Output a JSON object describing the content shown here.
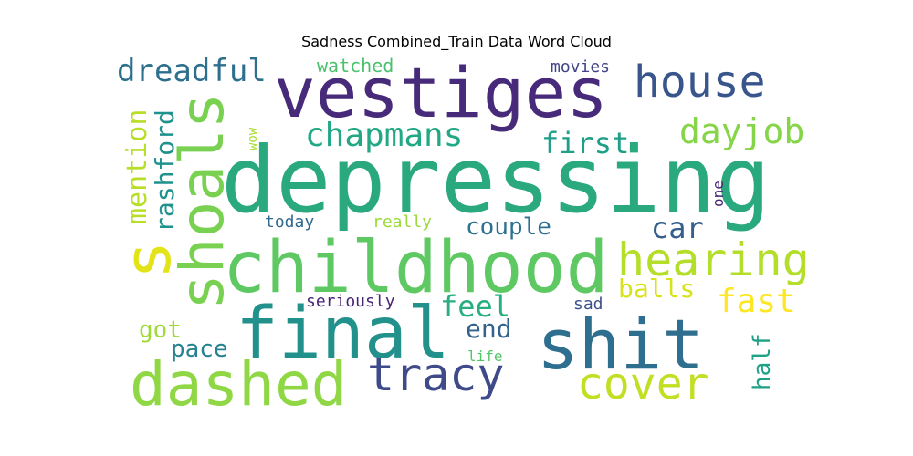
{
  "chart_data": {
    "type": "wordcloud",
    "title": "Sadness Combined_Train Data Word Cloud",
    "words": [
      {
        "text": "depressing",
        "color": "#2aa87e"
      },
      {
        "text": "vestiges",
        "color": "#472a7a"
      },
      {
        "text": "childhood",
        "color": "#5ec962"
      },
      {
        "text": "final",
        "color": "#22918c"
      },
      {
        "text": "shit",
        "color": "#2e6e8e"
      },
      {
        "text": "dashed",
        "color": "#8fd744"
      },
      {
        "text": "shoals",
        "color": "#79d151"
      },
      {
        "text": "s",
        "color": "#e2e418"
      },
      {
        "text": "house",
        "color": "#39568c"
      },
      {
        "text": "tracy",
        "color": "#3e4a89"
      },
      {
        "text": "cover",
        "color": "#c2df23"
      },
      {
        "text": "hearing",
        "color": "#b5de2b"
      },
      {
        "text": "chapmans",
        "color": "#22a884"
      },
      {
        "text": "dayjob",
        "color": "#86d549"
      },
      {
        "text": "dreadful",
        "color": "#2d708e"
      },
      {
        "text": "car",
        "color": "#355f8d"
      },
      {
        "text": "first",
        "color": "#1f9f88"
      },
      {
        "text": "fast",
        "color": "#fde725"
      },
      {
        "text": "mention",
        "color": "#b8de29"
      },
      {
        "text": "rashford",
        "color": "#20928c"
      },
      {
        "text": "couple",
        "color": "#2c728e"
      },
      {
        "text": "feel",
        "color": "#29af7f"
      },
      {
        "text": "end",
        "color": "#33638d"
      },
      {
        "text": "balls",
        "color": "#d8e219"
      },
      {
        "text": "half",
        "color": "#1fa187"
      },
      {
        "text": "pace",
        "color": "#26828e"
      },
      {
        "text": "got",
        "color": "#a0da39"
      },
      {
        "text": "watched",
        "color": "#4ac16d"
      },
      {
        "text": "movies",
        "color": "#414487"
      },
      {
        "text": "today",
        "color": "#31688e"
      },
      {
        "text": "really",
        "color": "#9bd93c"
      },
      {
        "text": "wow",
        "color": "#aadc32"
      },
      {
        "text": "one",
        "color": "#482677"
      },
      {
        "text": "seriously",
        "color": "#482475"
      },
      {
        "text": "sad",
        "color": "#3b528b"
      },
      {
        "text": "life",
        "color": "#54c568"
      }
    ]
  }
}
